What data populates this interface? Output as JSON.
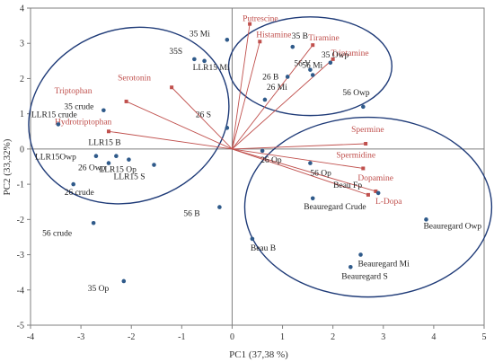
{
  "chart_data": {
    "type": "scatter",
    "title": "",
    "xlabel": "PC1 (37,38 %)",
    "ylabel": "PC2 (33,32%)",
    "xlim": [
      -4,
      5
    ],
    "ylim": [
      -5,
      4
    ],
    "x_ticks": [
      "-4",
      "-3",
      "-2",
      "-1",
      "0",
      "1",
      "2",
      "3",
      "4",
      "5"
    ],
    "y_ticks": [
      "-5",
      "-4",
      "-3",
      "-2",
      "-1",
      "0",
      "1",
      "2",
      "3",
      "4"
    ],
    "grid": false,
    "colors": {
      "samples": "#2f5a8a",
      "vectors": "#c0504d",
      "ellipses": "#1f3b78",
      "labels": "#c0504d"
    },
    "samples": [
      {
        "label": "35 Mi",
        "x": -0.1,
        "y": 3.1
      },
      {
        "label": "35S",
        "x": -0.75,
        "y": 2.55
      },
      {
        "label": "LLR15 Mi",
        "x": -0.55,
        "y": 2.5
      },
      {
        "label": "35 B",
        "x": 1.2,
        "y": 2.9
      },
      {
        "label": "35 Owp",
        "x": 1.95,
        "y": 2.45
      },
      {
        "label": "56 V",
        "x": 1.55,
        "y": 2.25
      },
      {
        "label": "56 Mi",
        "x": 1.6,
        "y": 2.1
      },
      {
        "label": "26 B",
        "x": 1.1,
        "y": 2.05
      },
      {
        "label": "26 Mi",
        "x": 0.65,
        "y": 1.4
      },
      {
        "label": "56 Owp",
        "x": 2.6,
        "y": 1.2
      },
      {
        "label": "26 S",
        "x": -0.1,
        "y": 0.6
      },
      {
        "label": "35 crude",
        "x": -2.55,
        "y": 1.1
      },
      {
        "label": "LLR15 crude",
        "x": -3.45,
        "y": 0.7
      },
      {
        "label": "LLR15 B",
        "x": -2.3,
        "y": -0.2
      },
      {
        "label": "LLR15Owp",
        "x": -2.7,
        "y": -0.2
      },
      {
        "label": "26 Owp",
        "x": -2.45,
        "y": -0.4
      },
      {
        "label": "LLR15 Op",
        "x": -2.05,
        "y": -0.3
      },
      {
        "label": "LLR15 S",
        "x": -1.55,
        "y": -0.45
      },
      {
        "label": "26 crude",
        "x": -3.15,
        "y": -1.0
      },
      {
        "label": "56 crude",
        "x": -2.75,
        "y": -2.1
      },
      {
        "label": "35 Op",
        "x": -2.15,
        "y": -3.75
      },
      {
        "label": "56 B",
        "x": -0.25,
        "y": -1.65
      },
      {
        "label": "26 Op",
        "x": 0.6,
        "y": -0.05
      },
      {
        "label": "56 Op",
        "x": 1.55,
        "y": -0.4
      },
      {
        "label": "Beau Fp",
        "x": 2.9,
        "y": -1.25
      },
      {
        "label": "Beauregard Crude",
        "x": 1.6,
        "y": -1.4
      },
      {
        "label": "Beauregard Owp",
        "x": 3.85,
        "y": -2.0
      },
      {
        "label": "Beau B",
        "x": 0.4,
        "y": -2.55
      },
      {
        "label": "Beauregard Mi",
        "x": 2.55,
        "y": -3.0
      },
      {
        "label": "Beauregard S",
        "x": 2.35,
        "y": -3.35
      }
    ],
    "vectors": [
      {
        "label": "Putrescine",
        "x": 0.35,
        "y": 3.55
      },
      {
        "label": "Histamine",
        "x": 0.55,
        "y": 3.05
      },
      {
        "label": "Tiramine",
        "x": 1.6,
        "y": 2.95
      },
      {
        "label": "Triptamine",
        "x": 2.0,
        "y": 2.55
      },
      {
        "label": "Serotonin",
        "x": -1.2,
        "y": 1.75
      },
      {
        "label": "Triptophan",
        "x": -2.1,
        "y": 1.35
      },
      {
        "label": "Hydrotriptophan",
        "x": -2.45,
        "y": 0.5
      },
      {
        "label": "Spermine",
        "x": 2.65,
        "y": 0.15
      },
      {
        "label": "Spermidine",
        "x": 2.6,
        "y": -0.55
      },
      {
        "label": "Dopamine",
        "x": 2.85,
        "y": -1.2
      },
      {
        "label": "L-Dopa",
        "x": 2.7,
        "y": -1.3
      }
    ],
    "ellipses": [
      {
        "cx": -2.05,
        "cy": 0.95,
        "rx": 2.02,
        "ry": 2.45,
        "rot": -20
      },
      {
        "cx": 1.55,
        "cy": 2.35,
        "rx": 1.62,
        "ry": 1.4,
        "rot": 0
      },
      {
        "cx": 2.7,
        "cy": -1.65,
        "rx": 2.45,
        "ry": 2.55,
        "rot": 0
      }
    ]
  }
}
